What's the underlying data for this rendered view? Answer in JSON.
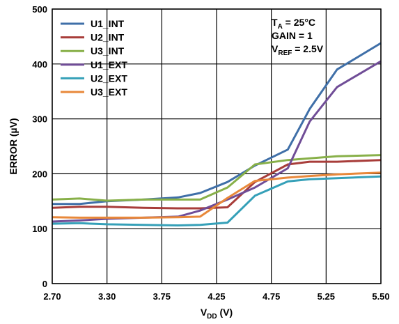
{
  "chart_data": {
    "type": "line",
    "xlabel": {
      "main": "V",
      "sub": "DD",
      "unit": " (V)"
    },
    "ylabel": "ERROR (µV)",
    "xlim": [
      2.7,
      5.5
    ],
    "ylim": [
      0,
      500
    ],
    "x_ticks": [
      "2.70",
      "3.30",
      "3.75",
      "4.25",
      "4.75",
      "5.25",
      "5.50"
    ],
    "y_ticks": [
      "0",
      "100",
      "200",
      "300",
      "400",
      "500"
    ],
    "grid": true,
    "legend_position": "top-left",
    "annotations": [
      {
        "main": "T",
        "sub": "A",
        "rest": " = 25°C"
      },
      {
        "main": "GAIN = 1",
        "sub": "",
        "rest": ""
      },
      {
        "main": "V",
        "sub": "REF",
        "rest": " = 2.5V"
      }
    ],
    "x": [
      2.7,
      3.0,
      3.3,
      3.6,
      3.9,
      4.1,
      4.35,
      4.6,
      4.9,
      5.1,
      5.3,
      5.5
    ],
    "series": [
      {
        "name": "U1_INT",
        "color": "#3f6fa8",
        "values": [
          145,
          145,
          150,
          153,
          157,
          165,
          185,
          215,
          244,
          318,
          390,
          438
        ]
      },
      {
        "name": "U2_INT",
        "color": "#a83d3a",
        "values": [
          138,
          140,
          140,
          138,
          137,
          137,
          139,
          185,
          217,
          222,
          222,
          225
        ]
      },
      {
        "name": "U3_INT",
        "color": "#88b049",
        "values": [
          153,
          155,
          151,
          153,
          153,
          153,
          175,
          217,
          225,
          228,
          232,
          234
        ]
      },
      {
        "name": "U1_EXT",
        "color": "#704d97",
        "values": [
          113,
          115,
          118,
          120,
          122,
          133,
          153,
          175,
          210,
          295,
          358,
          405
        ]
      },
      {
        "name": "U2_EXT",
        "color": "#35a0b8",
        "values": [
          109,
          110,
          108,
          107,
          106,
          107,
          111,
          160,
          186,
          190,
          192,
          195
        ]
      },
      {
        "name": "U3_EXT",
        "color": "#e8883a",
        "values": [
          121,
          120,
          120,
          120,
          121,
          122,
          156,
          187,
          193,
          196,
          199,
          202
        ]
      }
    ]
  }
}
